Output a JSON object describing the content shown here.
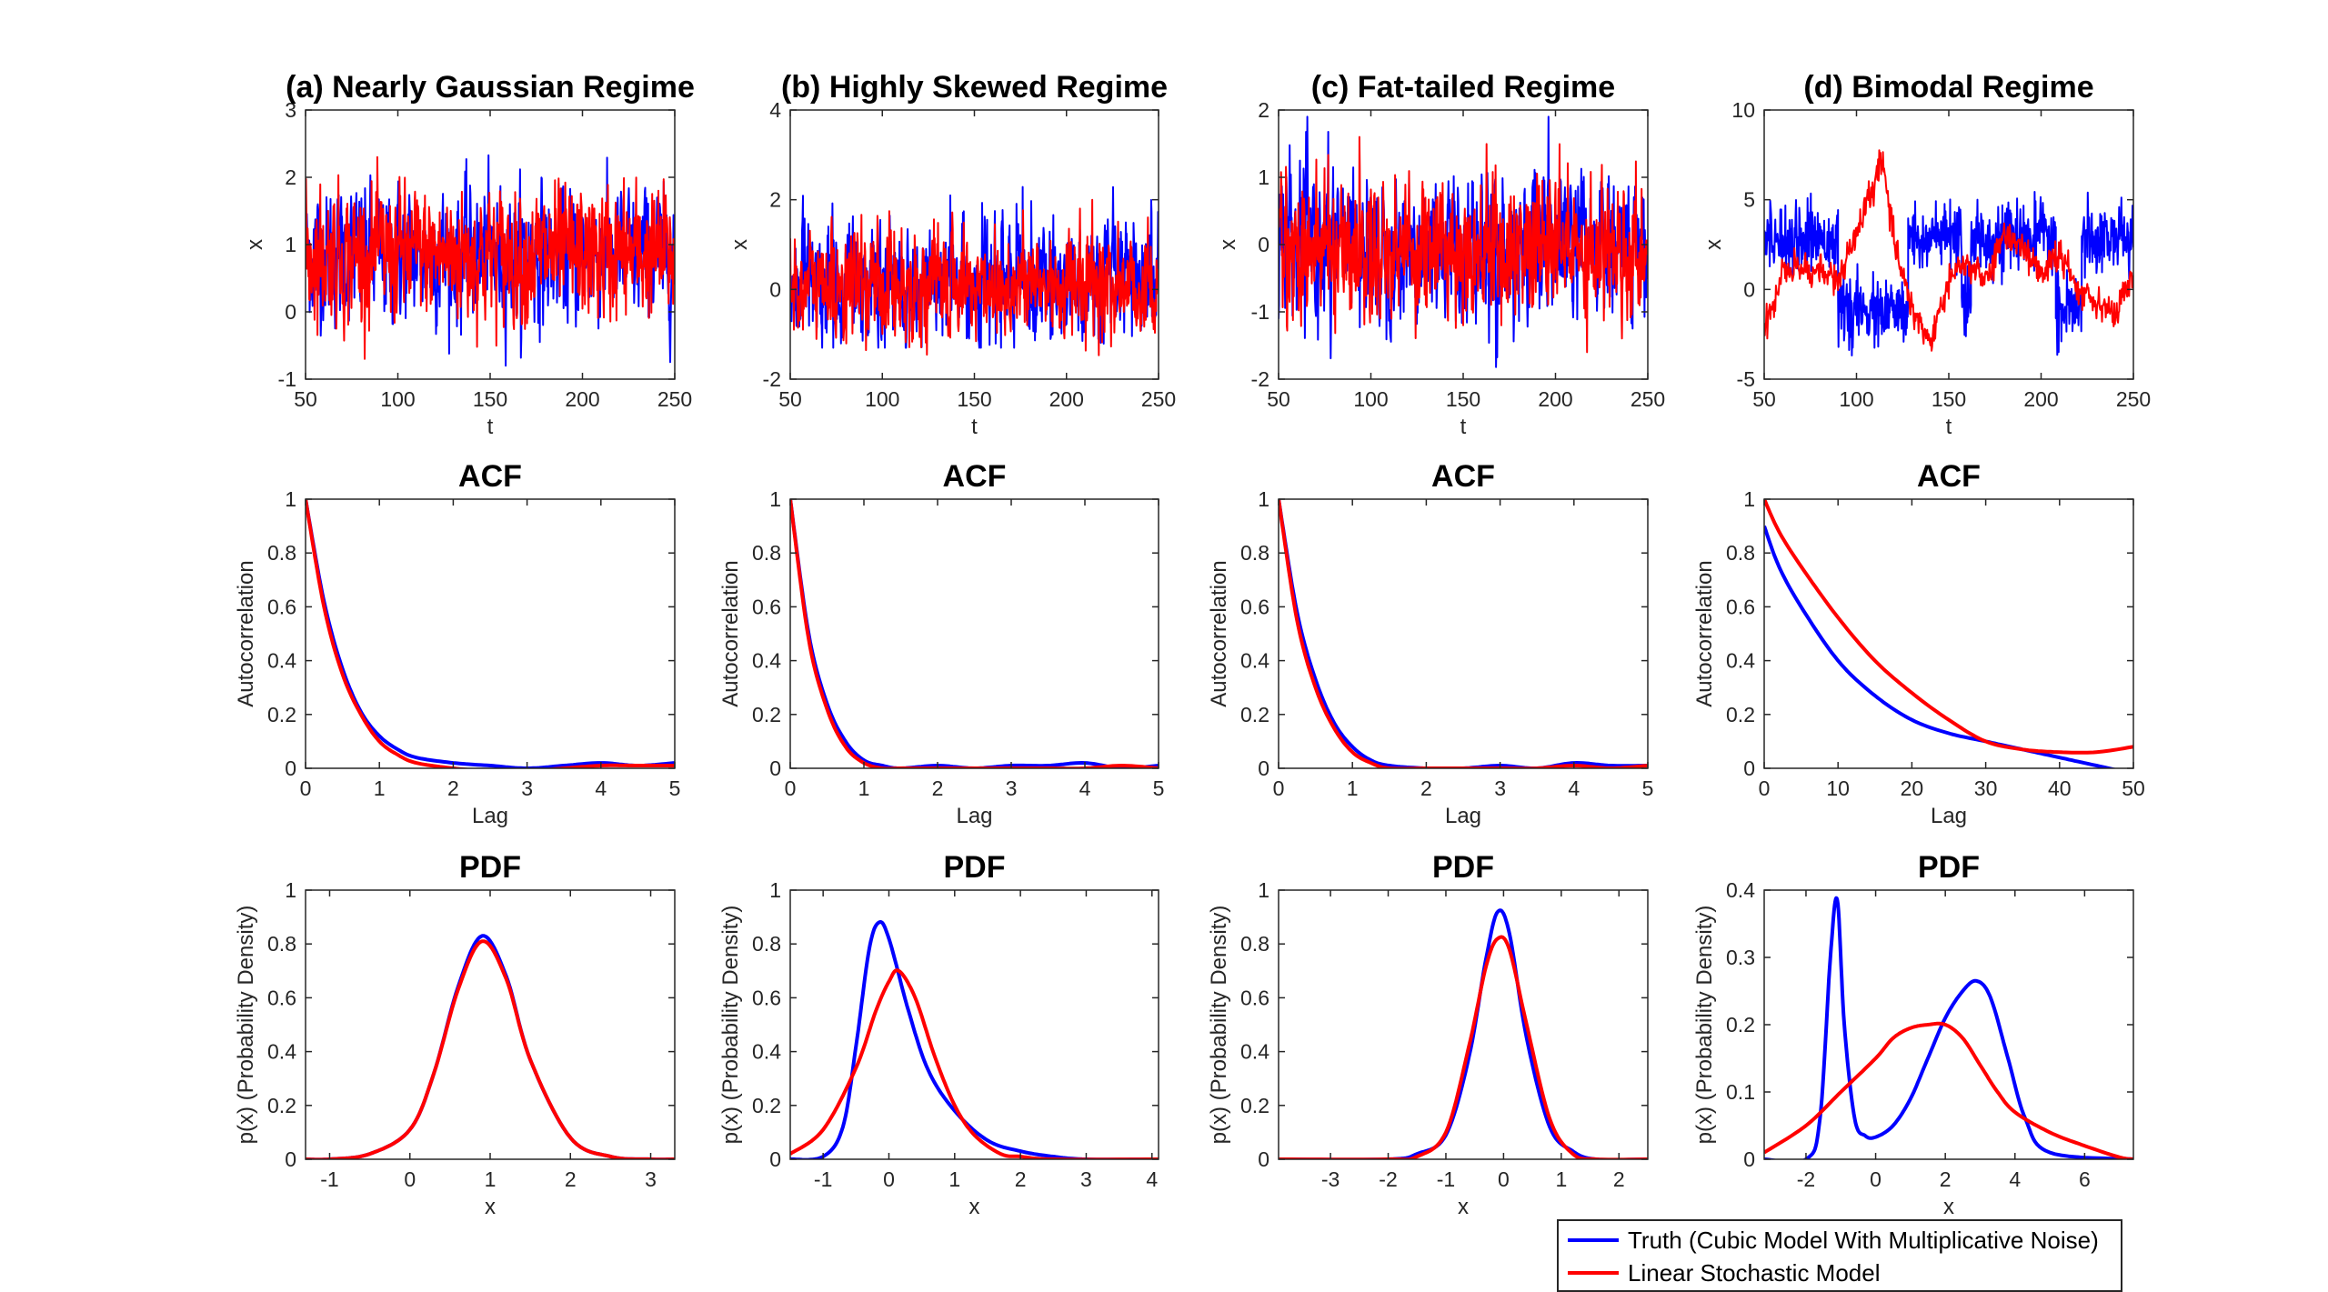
{
  "legend": {
    "entries": [
      {
        "label": "Truth (Cubic Model With Multiplicative Noise)",
        "color": "#0000ff"
      },
      {
        "label": "Linear Stochastic Model",
        "color": "#ff0000"
      }
    ]
  },
  "chart_data": [
    {
      "type": "line",
      "title": "(a) Nearly Gaussian Regime",
      "xlabel": "t",
      "ylabel": "x",
      "xlim": [
        50,
        250
      ],
      "ylim": [
        -1,
        3
      ],
      "xticks": [
        50,
        100,
        150,
        200,
        250
      ],
      "yticks": [
        -1,
        0,
        1,
        2,
        3
      ],
      "series": [
        {
          "name": "Truth (Cubic Model With Multiplicative Noise)",
          "color": "#0000ff",
          "mean": 0.85,
          "sd": 0.45,
          "min": -0.8,
          "max": 2.9
        },
        {
          "name": "Linear Stochastic Model",
          "color": "#ff0000",
          "mean": 0.85,
          "sd": 0.45,
          "min": -0.7,
          "max": 2.3
        }
      ]
    },
    {
      "type": "line",
      "title": "(b) Highly Skewed Regime",
      "xlabel": "t",
      "ylabel": "x",
      "xlim": [
        50,
        250
      ],
      "ylim": [
        -2,
        4
      ],
      "xticks": [
        50,
        100,
        150,
        200,
        250
      ],
      "yticks": [
        -2,
        0,
        2,
        4
      ],
      "series": [
        {
          "name": "Truth (Cubic Model With Multiplicative Noise)",
          "color": "#0000ff",
          "mean": 0.1,
          "sd": 0.6,
          "min": -1.3,
          "max": 3.0
        },
        {
          "name": "Linear Stochastic Model",
          "color": "#ff0000",
          "mean": 0.1,
          "sd": 0.55,
          "min": -1.8,
          "max": 2.0
        }
      ]
    },
    {
      "type": "line",
      "title": "(c) Fat-tailed Regime",
      "xlabel": "t",
      "ylabel": "x",
      "xlim": [
        50,
        250
      ],
      "ylim": [
        -2,
        2
      ],
      "xticks": [
        50,
        100,
        150,
        200,
        250
      ],
      "yticks": [
        -2,
        -1,
        0,
        1,
        2
      ],
      "series": [
        {
          "name": "Truth (Cubic Model With Multiplicative Noise)",
          "color": "#0000ff",
          "mean": -0.05,
          "sd": 0.5,
          "min": -1.85,
          "max": 1.9
        },
        {
          "name": "Linear Stochastic Model",
          "color": "#ff0000",
          "mean": -0.05,
          "sd": 0.48,
          "min": -1.6,
          "max": 1.6
        }
      ]
    },
    {
      "type": "line",
      "title": "(d) Bimodal Regime",
      "xlabel": "t",
      "ylabel": "x",
      "xlim": [
        50,
        250
      ],
      "ylim": [
        -5,
        10
      ],
      "xticks": [
        50,
        100,
        150,
        200,
        250
      ],
      "yticks": [
        -5,
        0,
        5,
        10
      ],
      "series": [
        {
          "name": "Truth (Cubic Model With Multiplicative Noise)",
          "color": "#0000ff",
          "regimes": [
            [
              50,
              90,
              2.9
            ],
            [
              90,
              128,
              -1.3
            ],
            [
              128,
              157,
              2.9
            ],
            [
              157,
              162,
              -1.2
            ],
            [
              162,
              208,
              2.9
            ],
            [
              208,
              222,
              -1.2
            ],
            [
              222,
              250,
              2.9
            ]
          ]
        },
        {
          "name": "Linear Stochastic Model",
          "color": "#ff0000",
          "path": [
            [
              50,
              -2.5
            ],
            [
              60,
              1.0
            ],
            [
              70,
              1.2
            ],
            [
              80,
              1.0
            ],
            [
              90,
              0.5
            ],
            [
              100,
              3.0
            ],
            [
              110,
              6.0
            ],
            [
              113,
              7.5
            ],
            [
              120,
              3.0
            ],
            [
              130,
              -1.0
            ],
            [
              140,
              -3.0
            ],
            [
              150,
              0.5
            ],
            [
              160,
              1.5
            ],
            [
              170,
              0.5
            ],
            [
              180,
              3.0
            ],
            [
              190,
              2.5
            ],
            [
              200,
              0.8
            ],
            [
              210,
              2.0
            ],
            [
              220,
              0.0
            ],
            [
              230,
              -0.5
            ],
            [
              240,
              -1.5
            ],
            [
              250,
              1.0
            ]
          ]
        }
      ]
    },
    {
      "type": "line",
      "title": "ACF",
      "xlabel": "Lag",
      "ylabel": "Autocorrelation",
      "xlim": [
        0,
        5
      ],
      "ylim": [
        0,
        1
      ],
      "xticks": [
        0,
        1,
        2,
        3,
        4,
        5
      ],
      "yticks": [
        0,
        0.2,
        0.4,
        0.6,
        0.8,
        1
      ],
      "series": [
        {
          "name": "Truth (Cubic Model With Multiplicative Noise)",
          "color": "#0000ff",
          "x": [
            0,
            0.25,
            0.5,
            0.75,
            1,
            1.25,
            1.5,
            2,
            2.5,
            3,
            3.5,
            4,
            4.5,
            5
          ],
          "y": [
            1,
            0.62,
            0.37,
            0.21,
            0.12,
            0.07,
            0.04,
            0.02,
            0.01,
            0.0,
            0.01,
            0.02,
            0.01,
            0.02
          ]
        },
        {
          "name": "Linear Stochastic Model",
          "color": "#ff0000",
          "x": [
            0,
            0.25,
            0.5,
            0.75,
            1,
            1.25,
            1.5,
            2,
            2.5,
            3,
            3.5,
            4,
            4.5,
            5
          ],
          "y": [
            1,
            0.6,
            0.35,
            0.2,
            0.1,
            0.05,
            0.02,
            0.0,
            -0.01,
            -0.01,
            0.0,
            0.01,
            0.01,
            0.01
          ]
        }
      ]
    },
    {
      "type": "line",
      "title": "ACF",
      "xlabel": "Lag",
      "ylabel": "Autocorrelation",
      "xlim": [
        0,
        5
      ],
      "ylim": [
        0,
        1
      ],
      "xticks": [
        0,
        1,
        2,
        3,
        4,
        5
      ],
      "yticks": [
        0,
        0.2,
        0.4,
        0.6,
        0.8,
        1
      ],
      "series": [
        {
          "name": "Truth (Cubic Model With Multiplicative Noise)",
          "color": "#0000ff",
          "x": [
            0,
            0.25,
            0.5,
            0.75,
            1,
            1.25,
            1.5,
            2,
            2.5,
            3,
            3.5,
            4,
            4.5,
            5
          ],
          "y": [
            1,
            0.5,
            0.24,
            0.1,
            0.03,
            0.01,
            0.0,
            0.01,
            0.0,
            0.01,
            0.01,
            0.02,
            0.0,
            0.01
          ]
        },
        {
          "name": "Linear Stochastic Model",
          "color": "#ff0000",
          "x": [
            0,
            0.25,
            0.5,
            0.75,
            1,
            1.25,
            1.5,
            2,
            2.5,
            3,
            3.5,
            4,
            4.5,
            5
          ],
          "y": [
            1,
            0.48,
            0.22,
            0.08,
            0.02,
            0.0,
            0.0,
            0.0,
            0.0,
            0.0,
            0.0,
            0.0,
            0.01,
            0.0
          ]
        }
      ]
    },
    {
      "type": "line",
      "title": "ACF",
      "xlabel": "Lag",
      "ylabel": "Autocorrelation",
      "xlim": [
        0,
        5
      ],
      "ylim": [
        0,
        1
      ],
      "xticks": [
        0,
        1,
        2,
        3,
        4,
        5
      ],
      "yticks": [
        0,
        0.2,
        0.4,
        0.6,
        0.8,
        1
      ],
      "series": [
        {
          "name": "Truth (Cubic Model With Multiplicative Noise)",
          "color": "#0000ff",
          "x": [
            0,
            0.25,
            0.5,
            0.75,
            1,
            1.25,
            1.5,
            2,
            2.5,
            3,
            3.5,
            4,
            4.5,
            5
          ],
          "y": [
            1,
            0.58,
            0.33,
            0.17,
            0.08,
            0.03,
            0.01,
            0.0,
            0.0,
            0.01,
            0.0,
            0.02,
            0.01,
            0.01
          ]
        },
        {
          "name": "Linear Stochastic Model",
          "color": "#ff0000",
          "x": [
            0,
            0.25,
            0.5,
            0.75,
            1,
            1.25,
            1.5,
            2,
            2.5,
            3,
            3.5,
            4,
            4.5,
            5
          ],
          "y": [
            1,
            0.55,
            0.3,
            0.15,
            0.06,
            0.02,
            0.0,
            0.0,
            0.0,
            0.0,
            0.0,
            0.01,
            0.0,
            0.01
          ]
        }
      ]
    },
    {
      "type": "line",
      "title": "ACF",
      "xlabel": "Lag",
      "ylabel": "Autocorrelation",
      "xlim": [
        0,
        50
      ],
      "ylim": [
        0,
        1
      ],
      "xticks": [
        0,
        10,
        20,
        30,
        40,
        50
      ],
      "yticks": [
        0,
        0.2,
        0.4,
        0.6,
        0.8,
        1
      ],
      "series": [
        {
          "name": "Truth (Cubic Model With Multiplicative Noise)",
          "color": "#0000ff",
          "x": [
            0,
            2,
            5,
            10,
            15,
            20,
            25,
            30,
            35,
            40,
            45,
            50
          ],
          "y": [
            0.9,
            0.75,
            0.6,
            0.4,
            0.27,
            0.18,
            0.13,
            0.1,
            0.07,
            0.04,
            0.01,
            -0.02
          ]
        },
        {
          "name": "Linear Stochastic Model",
          "color": "#ff0000",
          "x": [
            0,
            2,
            5,
            10,
            15,
            20,
            25,
            30,
            35,
            40,
            45,
            50
          ],
          "y": [
            1,
            0.88,
            0.75,
            0.56,
            0.4,
            0.28,
            0.18,
            0.1,
            0.07,
            0.06,
            0.06,
            0.08
          ]
        }
      ]
    },
    {
      "type": "line",
      "title": "PDF",
      "xlabel": "x",
      "ylabel": "p(x) (Probability Density)",
      "xlim": [
        -1.3,
        3.3
      ],
      "ylim": [
        0,
        1
      ],
      "xticks": [
        -1,
        0,
        1,
        2,
        3
      ],
      "yticks": [
        0,
        0.2,
        0.4,
        0.6,
        0.8,
        1
      ],
      "series": [
        {
          "name": "Truth (Cubic Model With Multiplicative Noise)",
          "color": "#0000ff",
          "x": [
            -1.3,
            -1,
            -0.5,
            0,
            0.3,
            0.6,
            0.9,
            1.2,
            1.5,
            2,
            2.5,
            3,
            3.3
          ],
          "y": [
            0,
            0.0,
            0.02,
            0.11,
            0.32,
            0.64,
            0.83,
            0.68,
            0.37,
            0.08,
            0.01,
            0,
            0
          ]
        },
        {
          "name": "Linear Stochastic Model",
          "color": "#ff0000",
          "x": [
            -1.3,
            -1,
            -0.5,
            0,
            0.3,
            0.6,
            0.9,
            1.2,
            1.5,
            2,
            2.5,
            3,
            3.3
          ],
          "y": [
            0,
            0.0,
            0.02,
            0.11,
            0.32,
            0.63,
            0.81,
            0.67,
            0.37,
            0.08,
            0.01,
            0,
            0
          ]
        }
      ]
    },
    {
      "type": "line",
      "title": "PDF",
      "xlabel": "x",
      "ylabel": "p(x) (Probability Density)",
      "xlim": [
        -1.5,
        4.1
      ],
      "ylim": [
        0,
        1
      ],
      "xticks": [
        -1,
        0,
        1,
        2,
        3,
        4
      ],
      "yticks": [
        0,
        0.2,
        0.4,
        0.6,
        0.8,
        1
      ],
      "series": [
        {
          "name": "Truth (Cubic Model With Multiplicative Noise)",
          "color": "#0000ff",
          "x": [
            -1.5,
            -1,
            -0.7,
            -0.5,
            -0.3,
            -0.15,
            0,
            0.3,
            0.6,
            1,
            1.5,
            2,
            2.5,
            3,
            4.1
          ],
          "y": [
            0,
            0.01,
            0.12,
            0.42,
            0.78,
            0.88,
            0.82,
            0.55,
            0.33,
            0.18,
            0.07,
            0.03,
            0.01,
            0,
            0
          ]
        },
        {
          "name": "Linear Stochastic Model",
          "color": "#ff0000",
          "x": [
            -1.5,
            -1,
            -0.5,
            -0.2,
            0,
            0.15,
            0.4,
            0.7,
            1,
            1.3,
            1.7,
            2,
            2.5,
            4.1
          ],
          "y": [
            0.02,
            0.11,
            0.34,
            0.55,
            0.66,
            0.7,
            0.6,
            0.38,
            0.2,
            0.09,
            0.02,
            0.01,
            0,
            0
          ]
        }
      ]
    },
    {
      "type": "line",
      "title": "PDF",
      "xlabel": "x",
      "ylabel": "p(x) (Probability Density)",
      "xlim": [
        -3.9,
        2.5
      ],
      "ylim": [
        0,
        1
      ],
      "xticks": [
        -3,
        -2,
        -1,
        0,
        1,
        2
      ],
      "yticks": [
        0,
        0.2,
        0.4,
        0.6,
        0.8,
        1
      ],
      "series": [
        {
          "name": "Truth (Cubic Model With Multiplicative Noise)",
          "color": "#0000ff",
          "x": [
            -3.9,
            -2,
            -1.5,
            -1,
            -0.6,
            -0.3,
            -0.1,
            0.1,
            0.4,
            0.8,
            1.2,
            1.6,
            2.5
          ],
          "y": [
            0,
            0,
            0.02,
            0.09,
            0.38,
            0.75,
            0.92,
            0.84,
            0.45,
            0.12,
            0.03,
            0,
            0
          ]
        },
        {
          "name": "Linear Stochastic Model",
          "color": "#ff0000",
          "x": [
            -3.9,
            -2,
            -1.5,
            -1,
            -0.6,
            -0.3,
            -0.1,
            0.1,
            0.4,
            0.8,
            1.2,
            1.6,
            2.5
          ],
          "y": [
            0,
            0,
            0.01,
            0.1,
            0.42,
            0.72,
            0.82,
            0.78,
            0.5,
            0.15,
            0.02,
            0,
            0
          ]
        }
      ]
    },
    {
      "type": "line",
      "title": "PDF",
      "xlabel": "x",
      "ylabel": "p(x) (Probability Density)",
      "xlim": [
        -3.2,
        7.4
      ],
      "ylim": [
        0,
        0.4
      ],
      "xticks": [
        -2,
        0,
        2,
        4,
        6
      ],
      "yticks": [
        0,
        0.1,
        0.2,
        0.3,
        0.4
      ],
      "series": [
        {
          "name": "Truth (Cubic Model With Multiplicative Noise)",
          "color": "#0000ff",
          "x": [
            -3.2,
            -2,
            -1.6,
            -1.3,
            -1.1,
            -0.9,
            -0.6,
            -0.3,
            0,
            0.5,
            1,
            1.5,
            2,
            2.5,
            2.9,
            3.3,
            3.8,
            4.3,
            5,
            7.4
          ],
          "y": [
            0,
            0,
            0.06,
            0.3,
            0.385,
            0.2,
            0.06,
            0.035,
            0.033,
            0.05,
            0.09,
            0.15,
            0.21,
            0.25,
            0.265,
            0.24,
            0.15,
            0.06,
            0.01,
            0
          ]
        },
        {
          "name": "Linear Stochastic Model",
          "color": "#ff0000",
          "x": [
            -3.2,
            -2,
            -1,
            0,
            0.5,
            1,
            1.5,
            2,
            2.5,
            3,
            3.5,
            4,
            5,
            6,
            7,
            7.4
          ],
          "y": [
            0.01,
            0.05,
            0.1,
            0.15,
            0.18,
            0.195,
            0.2,
            0.2,
            0.18,
            0.14,
            0.1,
            0.07,
            0.04,
            0.02,
            0.003,
            0
          ]
        }
      ]
    }
  ]
}
